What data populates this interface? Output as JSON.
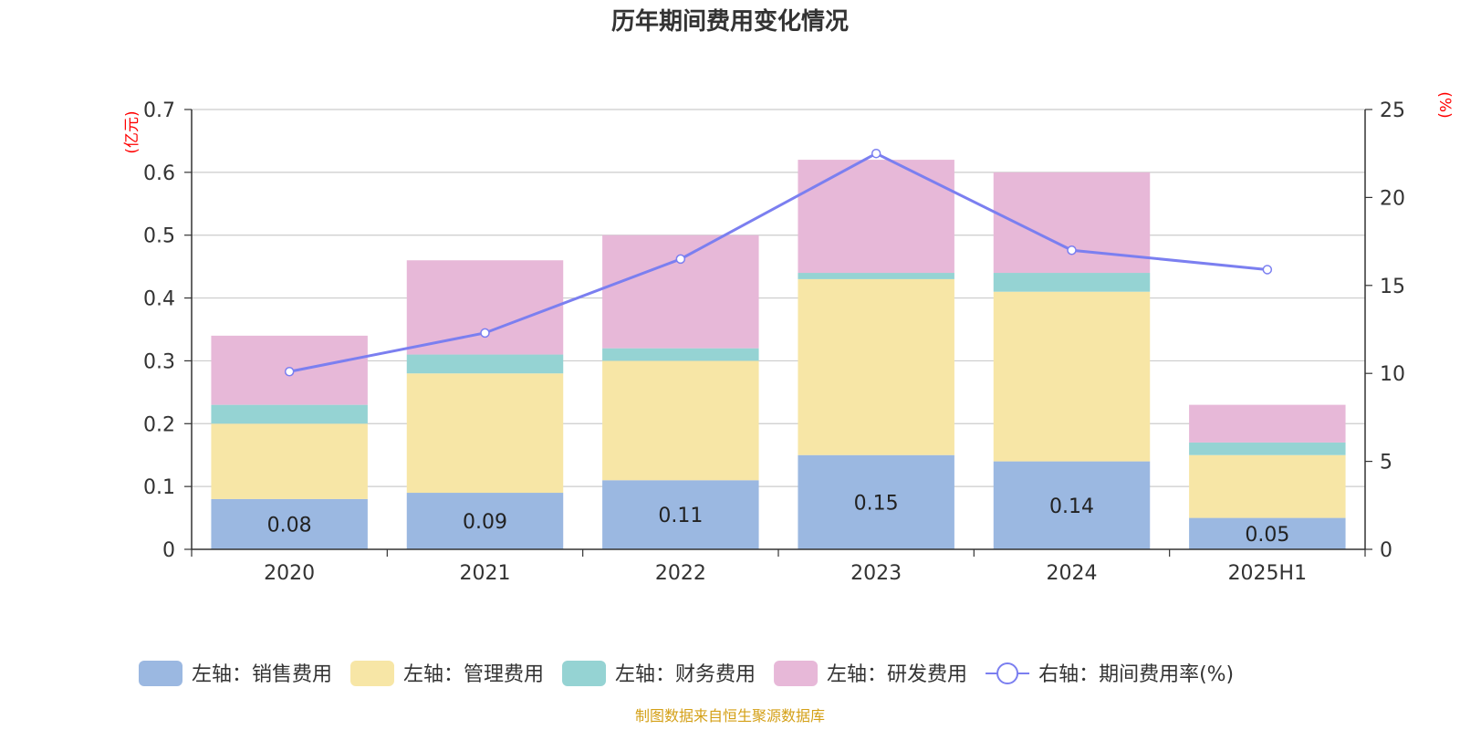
{
  "title": "历年期间费用变化情况",
  "source": "制图数据来自恒生聚源数据库",
  "chart_data": {
    "type": "bar",
    "stacked": true,
    "title": "历年期间费用变化情况",
    "categories": [
      "2020",
      "2021",
      "2022",
      "2023",
      "2024",
      "2025H1"
    ],
    "left_axis": {
      "unit": "(亿元)",
      "ylim": [
        0,
        0.7
      ],
      "ticks": [
        "0",
        "0.1",
        "0.2",
        "0.3",
        "0.4",
        "0.5",
        "0.6",
        "0.7"
      ]
    },
    "right_axis": {
      "unit": "(%)",
      "ylim": [
        0,
        25
      ],
      "ticks": [
        "0",
        "5",
        "10",
        "15",
        "20",
        "25"
      ]
    },
    "series": [
      {
        "name": "左轴：销售费用",
        "axis": "left",
        "type": "bar",
        "color": "#9bb8e1",
        "values": [
          0.08,
          0.09,
          0.11,
          0.15,
          0.14,
          0.05
        ],
        "labels": [
          "0.08",
          "0.09",
          "0.11",
          "0.15",
          "0.14",
          "0.05"
        ]
      },
      {
        "name": "左轴：管理费用",
        "axis": "left",
        "type": "bar",
        "color": "#f7e6a6",
        "values": [
          0.12,
          0.19,
          0.19,
          0.28,
          0.27,
          0.1
        ]
      },
      {
        "name": "左轴：财务费用",
        "axis": "left",
        "type": "bar",
        "color": "#95d3d3",
        "values": [
          0.03,
          0.03,
          0.02,
          0.01,
          0.03,
          0.02
        ]
      },
      {
        "name": "左轴：研发费用",
        "axis": "left",
        "type": "bar",
        "color": "#e7b8d8",
        "values": [
          0.11,
          0.15,
          0.18,
          0.18,
          0.16,
          0.06
        ]
      },
      {
        "name": "右轴：期间费用率(%)",
        "axis": "right",
        "type": "line",
        "color": "#7b7ff0",
        "values": [
          10.1,
          12.3,
          16.5,
          22.5,
          17.0,
          15.9
        ]
      }
    ],
    "grid": true,
    "legend_position": "bottom"
  }
}
